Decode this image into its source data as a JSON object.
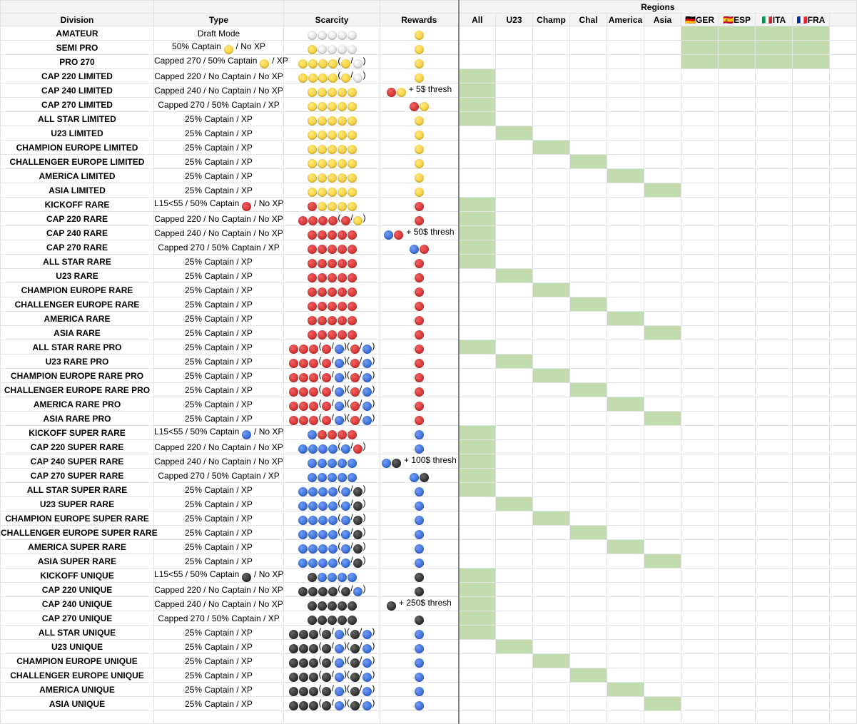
{
  "sheet": {
    "regions_title": "Regions",
    "columns": [
      "Division",
      "Type",
      "Scarcity",
      "Rewards",
      "All",
      "U23",
      "Champ",
      "Chal",
      "America",
      "Asia",
      "🇩🇪GER",
      "🇪🇸ESP",
      "🇮🇹ITA",
      "🇫🇷FRA"
    ],
    "rows": [
      {
        "division": "AMATEUR",
        "type": "Draft Mode",
        "scarcity": "⚪⚪⚪⚪⚪",
        "rewards": "🟡",
        "highlight": [
          6,
          7,
          8,
          9
        ]
      },
      {
        "division": "SEMI PRO",
        "type": "50% Captain 🟡 / No XP",
        "scarcity": "🟡⚪⚪⚪⚪",
        "rewards": "🟡",
        "highlight": [
          6,
          7,
          8,
          9
        ]
      },
      {
        "division": "PRO 270",
        "type": "Capped 270 / 50% Captain 🟡 / XP",
        "scarcity": "🟡🟡🟡🟡(🟡/⚪)",
        "rewards": "🟡",
        "highlight": [
          6,
          7,
          8,
          9
        ]
      },
      {
        "division": "CAP 220 LIMITED",
        "type": "Capped 220 / No Captain / No XP",
        "scarcity": "🟡🟡🟡🟡(🟡/⚪)",
        "rewards": "🟡",
        "highlight": [
          0
        ]
      },
      {
        "division": "CAP 240 LIMITED",
        "type": "Capped 240 / No Captain / No XP",
        "scarcity": "🟡🟡🟡🟡🟡",
        "rewards": "🔴🟡 + 5$ thresh",
        "highlight": [
          0
        ]
      },
      {
        "division": "CAP 270 LIMITED",
        "type": "Capped 270 / 50% Captain / XP",
        "scarcity": "🟡🟡🟡🟡🟡",
        "rewards": "🔴🟡",
        "highlight": [
          0
        ]
      },
      {
        "division": "ALL STAR LIMITED",
        "type": "25% Captain / XP",
        "scarcity": "🟡🟡🟡🟡🟡",
        "rewards": "🟡",
        "highlight": [
          0
        ]
      },
      {
        "division": "U23 LIMITED",
        "type": "25% Captain / XP",
        "scarcity": "🟡🟡🟡🟡🟡",
        "rewards": "🟡",
        "highlight": [
          1
        ]
      },
      {
        "division": "CHAMPION EUROPE LIMITED",
        "type": "25% Captain / XP",
        "scarcity": "🟡🟡🟡🟡🟡",
        "rewards": "🟡",
        "highlight": [
          2
        ]
      },
      {
        "division": "CHALLENGER EUROPE LIMITED",
        "type": "25% Captain / XP",
        "scarcity": "🟡🟡🟡🟡🟡",
        "rewards": "🟡",
        "highlight": [
          3
        ]
      },
      {
        "division": "AMERICA LIMITED",
        "type": "25% Captain / XP",
        "scarcity": "🟡🟡🟡🟡🟡",
        "rewards": "🟡",
        "highlight": [
          4
        ]
      },
      {
        "division": "ASIA LIMITED",
        "type": "25% Captain / XP",
        "scarcity": "🟡🟡🟡🟡🟡",
        "rewards": "🟡",
        "highlight": [
          5
        ]
      },
      {
        "division": "KICKOFF RARE",
        "type": "L15<55 / 50% Captain 🔴 / No XP",
        "scarcity": "🔴🟡🟡🟡🟡",
        "rewards": "🔴",
        "highlight": [
          0
        ]
      },
      {
        "division": "CAP 220 RARE",
        "type": "Capped 220 / No Captain / No XP",
        "scarcity": "🔴🔴🔴🔴(🔴/🟡)",
        "rewards": "🔴",
        "highlight": [
          0
        ]
      },
      {
        "division": "CAP 240 RARE",
        "type": "Capped 240 / No Captain / No XP",
        "scarcity": "🔴🔴🔴🔴🔴",
        "rewards": "🔵🔴 + 50$ thresh",
        "highlight": [
          0
        ]
      },
      {
        "division": "CAP 270 RARE",
        "type": "Capped 270 / 50% Captain / XP",
        "scarcity": "🔴🔴🔴🔴🔴",
        "rewards": "🔵🔴",
        "highlight": [
          0
        ]
      },
      {
        "division": "ALL STAR RARE",
        "type": "25% Captain / XP",
        "scarcity": "🔴🔴🔴🔴🔴",
        "rewards": "🔴",
        "highlight": [
          0
        ]
      },
      {
        "division": "U23 RARE",
        "type": "25% Captain / XP",
        "scarcity": "🔴🔴🔴🔴🔴",
        "rewards": "🔴",
        "highlight": [
          1
        ]
      },
      {
        "division": "CHAMPION EUROPE RARE",
        "type": "25% Captain / XP",
        "scarcity": "🔴🔴🔴🔴🔴",
        "rewards": "🔴",
        "highlight": [
          2
        ]
      },
      {
        "division": "CHALLENGER EUROPE RARE",
        "type": "25% Captain / XP",
        "scarcity": "🔴🔴🔴🔴🔴",
        "rewards": "🔴",
        "highlight": [
          3
        ]
      },
      {
        "division": "AMERICA RARE",
        "type": "25% Captain / XP",
        "scarcity": "🔴🔴🔴🔴🔴",
        "rewards": "🔴",
        "highlight": [
          4
        ]
      },
      {
        "division": "ASIA RARE",
        "type": "25% Captain / XP",
        "scarcity": "🔴🔴🔴🔴🔴",
        "rewards": "🔴",
        "highlight": [
          5
        ]
      },
      {
        "division": "ALL STAR RARE PRO",
        "type": "25% Captain / XP",
        "scarcity": "🔴🔴🔴(🔴/🔵)(🔴/🔵)",
        "rewards": "🔴",
        "highlight": [
          0
        ]
      },
      {
        "division": "U23 RARE PRO",
        "type": "25% Captain / XP",
        "scarcity": "🔴🔴🔴(🔴/🔵)(🔴/🔵)",
        "rewards": "🔴",
        "highlight": [
          1
        ]
      },
      {
        "division": "CHAMPION EUROPE RARE PRO",
        "type": "25% Captain / XP",
        "scarcity": "🔴🔴🔴(🔴/🔵)(🔴/🔵)",
        "rewards": "🔴",
        "highlight": [
          2
        ]
      },
      {
        "division": "CHALLENGER EUROPE RARE PRO",
        "type": "25% Captain / XP",
        "scarcity": "🔴🔴🔴(🔴/🔵)(🔴/🔵)",
        "rewards": "🔴",
        "highlight": [
          3
        ]
      },
      {
        "division": "AMERICA RARE PRO",
        "type": "25% Captain / XP",
        "scarcity": "🔴🔴🔴(🔴/🔵)(🔴/🔵)",
        "rewards": "🔴",
        "highlight": [
          4
        ]
      },
      {
        "division": "ASIA RARE PRO",
        "type": "25% Captain / XP",
        "scarcity": "🔴🔴🔴(🔴/🔵)(🔴/🔵)",
        "rewards": "🔴",
        "highlight": [
          5
        ]
      },
      {
        "division": "KICKOFF SUPER RARE",
        "type": "L15<55 / 50% Captain 🔵 / No XP",
        "scarcity": "🔵🔴🔴🔴🔴",
        "rewards": "🔵",
        "highlight": [
          0
        ]
      },
      {
        "division": "CAP 220 SUPER RARE",
        "type": "Capped 220 / No Captain / No XP",
        "scarcity": "🔵🔵🔵🔵(🔵/🔴)",
        "rewards": "🔵",
        "highlight": [
          0
        ]
      },
      {
        "division": "CAP 240 SUPER RARE",
        "type": "Capped 240 / No Captain / No XP",
        "scarcity": "🔵🔵🔵🔵🔵",
        "rewards": "🔵⚫ + 100$ thresh",
        "highlight": [
          0
        ]
      },
      {
        "division": "CAP 270 SUPER RARE",
        "type": "Capped 270 / 50% Captain / XP",
        "scarcity": "🔵🔵🔵🔵🔵",
        "rewards": "🔵⚫",
        "highlight": [
          0
        ]
      },
      {
        "division": "ALL STAR SUPER RARE",
        "type": "25% Captain / XP",
        "scarcity": "🔵🔵🔵🔵(🔵/⚫)",
        "rewards": "🔵",
        "highlight": [
          0
        ]
      },
      {
        "division": "U23 SUPER RARE",
        "type": "25% Captain / XP",
        "scarcity": "🔵🔵🔵🔵(🔵/⚫)",
        "rewards": "🔵",
        "highlight": [
          1
        ]
      },
      {
        "division": "CHAMPION EUROPE SUPER RARE",
        "type": "25% Captain / XP",
        "scarcity": "🔵🔵🔵🔵(🔵/⚫)",
        "rewards": "🔵",
        "highlight": [
          2
        ]
      },
      {
        "division": "CHALLENGER EUROPE SUPER RARE",
        "type": "25% Captain / XP",
        "scarcity": "🔵🔵🔵🔵(🔵/⚫)",
        "rewards": "🔵",
        "highlight": [
          3
        ]
      },
      {
        "division": "AMERICA SUPER RARE",
        "type": "25% Captain / XP",
        "scarcity": "🔵🔵🔵🔵(🔵/⚫)",
        "rewards": "🔵",
        "highlight": [
          4
        ]
      },
      {
        "division": "ASIA SUPER RARE",
        "type": "25% Captain / XP",
        "scarcity": "🔵🔵🔵🔵(🔵/⚫)",
        "rewards": "🔵",
        "highlight": [
          5
        ]
      },
      {
        "division": "KICKOFF UNIQUE",
        "type": "L15<55 / 50% Captain ⚫ / No XP",
        "scarcity": "⚫🔵🔵🔵🔵",
        "rewards": "⚫",
        "highlight": [
          0
        ]
      },
      {
        "division": "CAP 220 UNIQUE",
        "type": "Capped 220 / No Captain / No XP",
        "scarcity": "⚫⚫⚫⚫(⚫/🔵)",
        "rewards": "⚫",
        "highlight": [
          0
        ]
      },
      {
        "division": "CAP 240 UNIQUE",
        "type": "Capped 240 / No Captain / No XP",
        "scarcity": "⚫⚫⚫⚫⚫",
        "rewards": "⚫ + 250$ thresh",
        "highlight": [
          0
        ]
      },
      {
        "division": "CAP 270 UNIQUE",
        "type": "Capped 270 / 50% Captain / XP",
        "scarcity": "⚫⚫⚫⚫⚫",
        "rewards": "⚫",
        "highlight": [
          0
        ]
      },
      {
        "division": "ALL STAR UNIQUE",
        "type": "25% Captain / XP",
        "scarcity": "⚫⚫⚫(⚫/🔵)(⚫/🔵)",
        "rewards": "🔵",
        "highlight": [
          0
        ]
      },
      {
        "division": "U23 UNIQUE",
        "type": "25% Captain / XP",
        "scarcity": "⚫⚫⚫(⚫/🔵)(⚫/🔵)",
        "rewards": "🔵",
        "highlight": [
          1
        ]
      },
      {
        "division": "CHAMPION EUROPE UNIQUE",
        "type": "25% Captain / XP",
        "scarcity": "⚫⚫⚫(⚫/🔵)(⚫/🔵)",
        "rewards": "🔵",
        "highlight": [
          2
        ]
      },
      {
        "division": "CHALLENGER EUROPE UNIQUE",
        "type": "25% Captain / XP",
        "scarcity": "⚫⚫⚫(⚫/🔵)(⚫/🔵)",
        "rewards": "🔵",
        "highlight": [
          3
        ]
      },
      {
        "division": "AMERICA UNIQUE",
        "type": "25% Captain / XP",
        "scarcity": "⚫⚫⚫(⚫/🔵)(⚫/🔵)",
        "rewards": "🔵",
        "highlight": [
          4
        ]
      },
      {
        "division": "ASIA UNIQUE",
        "type": "25% Captain / XP",
        "scarcity": "⚫⚫⚫(⚫/🔵)(⚫/🔵)",
        "rewards": "🔵",
        "highlight": [
          5
        ]
      }
    ]
  }
}
